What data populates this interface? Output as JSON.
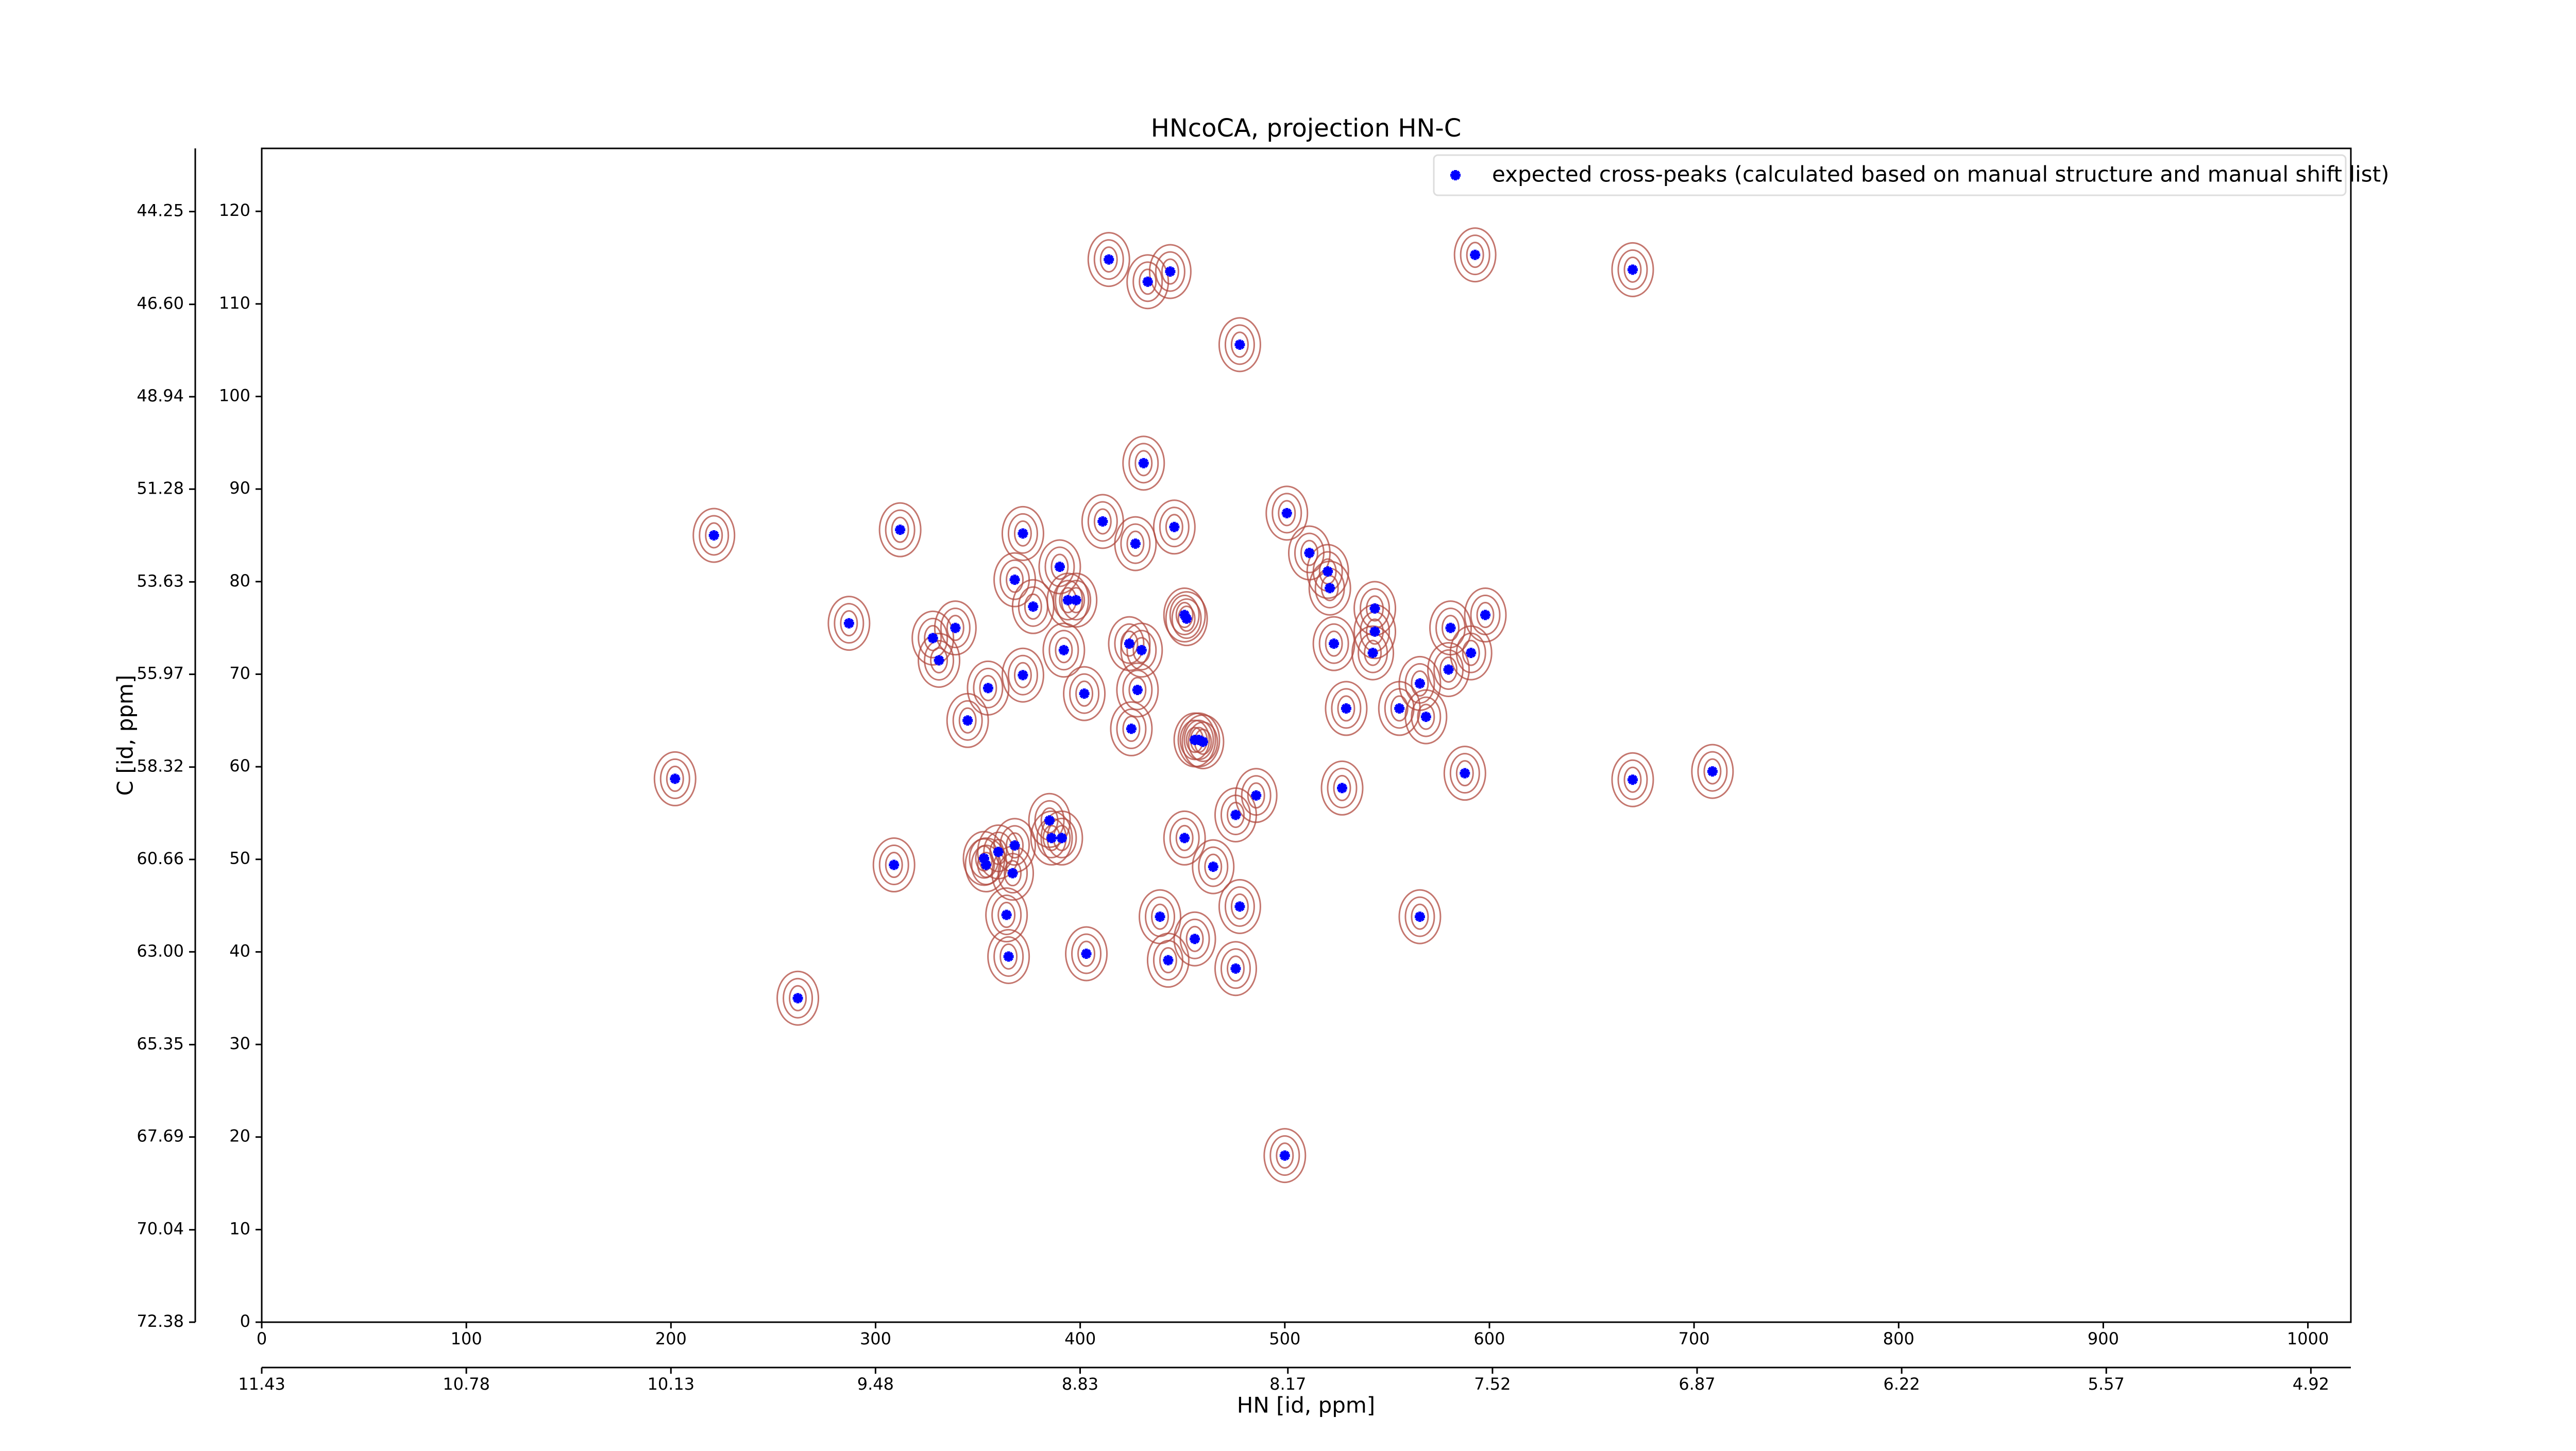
{
  "chart_data": {
    "type": "scatter",
    "title": "HNcoCA, projection HN-C",
    "xlabel": "HN [id, ppm]",
    "ylabel": "C [id, ppm]",
    "legend": "upper right",
    "contour_color": "#b0483e",
    "series": [
      {
        "name": "expected cross-peaks (calculated based on manual structure and manual shift list)",
        "color": "#0000ff",
        "x": [
          414,
          433,
          444,
          593,
          670,
          478,
          431,
          221,
          312,
          411,
          427,
          446,
          501,
          372,
          390,
          512,
          521,
          522,
          368,
          377,
          394,
          398,
          451,
          452,
          287,
          339,
          328,
          331,
          544,
          544,
          543,
          524,
          581,
          598,
          591,
          580,
          424,
          430,
          392,
          372,
          355,
          402,
          428,
          566,
          530,
          556,
          569,
          345,
          425,
          456,
          458,
          460,
          588,
          202,
          670,
          709,
          528,
          486,
          476,
          385,
          391,
          386,
          451,
          368,
          360,
          353,
          354,
          309,
          465,
          367,
          478,
          364,
          439,
          566,
          456,
          403,
          365,
          443,
          476,
          262,
          500
        ],
        "values": [
          114.8,
          112.4,
          113.5,
          115.3,
          113.7,
          105.6,
          92.8,
          85.0,
          85.6,
          86.5,
          84.1,
          85.9,
          87.4,
          85.2,
          81.6,
          83.1,
          81.1,
          79.3,
          80.2,
          77.3,
          78.0,
          78.0,
          76.4,
          76.0,
          75.5,
          75.0,
          73.9,
          71.5,
          77.1,
          74.6,
          72.3,
          73.3,
          75.0,
          76.4,
          72.3,
          70.5,
          73.3,
          72.6,
          72.6,
          69.9,
          68.5,
          67.9,
          68.3,
          69.0,
          66.3,
          66.3,
          65.4,
          65.0,
          64.1,
          62.9,
          62.9,
          62.7,
          59.3,
          58.7,
          58.6,
          59.5,
          57.7,
          56.9,
          54.8,
          54.2,
          52.3,
          52.3,
          52.3,
          51.5,
          50.8,
          50.1,
          49.4,
          49.4,
          49.2,
          48.5,
          44.9,
          44.0,
          43.8,
          43.8,
          41.4,
          39.8,
          39.5,
          39.1,
          38.2,
          35.0,
          18.0
        ]
      }
    ],
    "xlim": [
      0,
      1021
    ],
    "ylim": [
      0,
      126.8
    ],
    "xticks": [
      0,
      100,
      200,
      300,
      400,
      500,
      600,
      700,
      800,
      900,
      1000
    ],
    "yticks": [
      0,
      10,
      20,
      30,
      40,
      50,
      60,
      70,
      80,
      90,
      100,
      110,
      120
    ],
    "x2lim": [
      11.43,
      4.793
    ],
    "x2ticks": [
      11.43,
      10.78,
      10.13,
      9.48,
      8.83,
      8.17,
      7.52,
      6.87,
      6.22,
      5.57,
      4.92
    ],
    "y2lim": [
      72.38,
      42.65
    ],
    "y2ticks": [
      72.38,
      70.04,
      67.69,
      65.35,
      {
        "value": 63,
        "label": "63.00"
      },
      60.66,
      58.32,
      55.97,
      53.63,
      51.28,
      48.94,
      {
        "value": 46.6,
        "label": "46.60"
      },
      44.25
    ]
  }
}
